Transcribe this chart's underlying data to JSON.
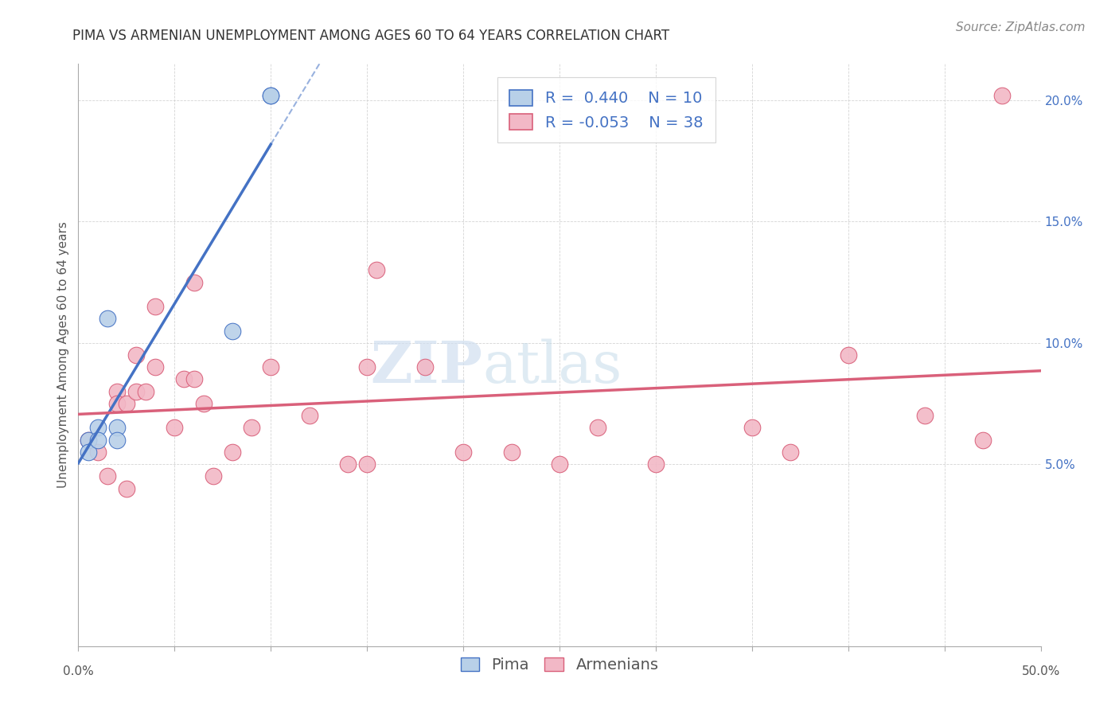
{
  "title": "PIMA VS ARMENIAN UNEMPLOYMENT AMONG AGES 60 TO 64 YEARS CORRELATION CHART",
  "source": "Source: ZipAtlas.com",
  "ylabel": "Unemployment Among Ages 60 to 64 years",
  "xlim": [
    0.0,
    0.5
  ],
  "ylim": [
    -0.025,
    0.215
  ],
  "yticks": [
    0.05,
    0.1,
    0.15,
    0.2
  ],
  "ytick_labels": [
    "5.0%",
    "10.0%",
    "15.0%",
    "20.0%"
  ],
  "xticks": [
    0.0,
    0.05,
    0.1,
    0.15,
    0.2,
    0.25,
    0.3,
    0.35,
    0.4,
    0.45,
    0.5
  ],
  "pima_R": 0.44,
  "pima_N": 10,
  "armenian_R": -0.053,
  "armenian_N": 38,
  "pima_color": "#b8d0e8",
  "armenian_color": "#f2b8c6",
  "pima_line_color": "#4472c4",
  "armenian_line_color": "#d9607a",
  "watermark_zip": "ZIP",
  "watermark_atlas": "atlas",
  "pima_points_x": [
    0.005,
    0.005,
    0.01,
    0.01,
    0.015,
    0.02,
    0.02,
    0.08,
    0.1,
    0.1
  ],
  "pima_points_y": [
    0.06,
    0.055,
    0.065,
    0.06,
    0.11,
    0.065,
    0.06,
    0.105,
    0.202,
    0.202
  ],
  "armenian_points_x": [
    0.005,
    0.01,
    0.015,
    0.02,
    0.02,
    0.025,
    0.03,
    0.03,
    0.035,
    0.04,
    0.04,
    0.05,
    0.055,
    0.06,
    0.065,
    0.07,
    0.08,
    0.09,
    0.1,
    0.12,
    0.14,
    0.155,
    0.2,
    0.225,
    0.25,
    0.27,
    0.3,
    0.35,
    0.37,
    0.4,
    0.44,
    0.47,
    0.48,
    0.15,
    0.15,
    0.06,
    0.025,
    0.18
  ],
  "armenian_points_y": [
    0.06,
    0.055,
    0.045,
    0.08,
    0.075,
    0.075,
    0.095,
    0.08,
    0.08,
    0.115,
    0.09,
    0.065,
    0.085,
    0.085,
    0.075,
    0.045,
    0.055,
    0.065,
    0.09,
    0.07,
    0.05,
    0.13,
    0.055,
    0.055,
    0.05,
    0.065,
    0.05,
    0.065,
    0.055,
    0.095,
    0.07,
    0.06,
    0.202,
    0.05,
    0.09,
    0.125,
    0.04,
    0.09
  ],
  "title_fontsize": 12,
  "axis_label_fontsize": 11,
  "tick_fontsize": 11,
  "legend_fontsize": 14,
  "source_fontsize": 11,
  "background_color": "#ffffff",
  "grid_color": "#d0d0d0",
  "title_color": "#333333"
}
